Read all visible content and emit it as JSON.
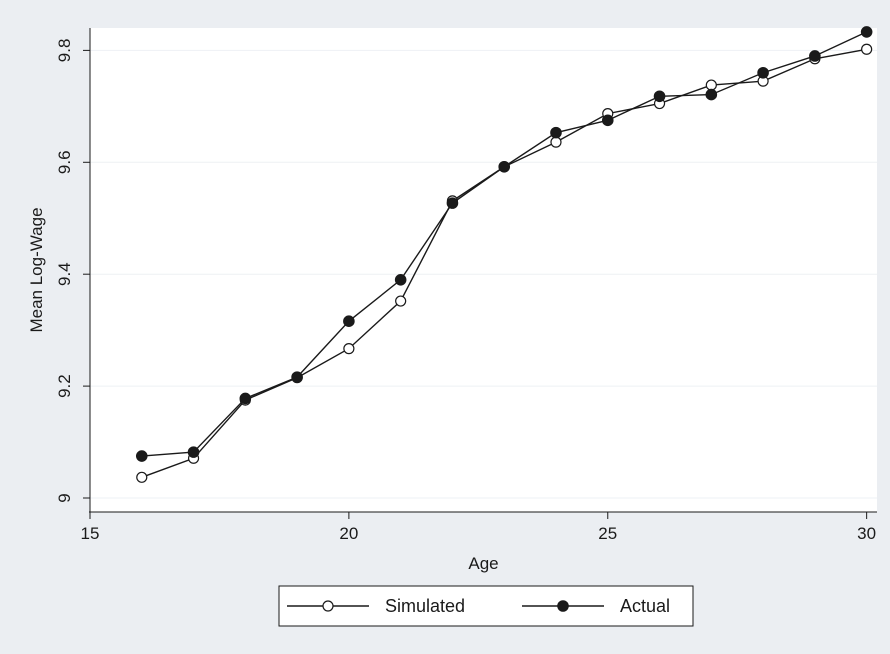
{
  "chart_data": {
    "type": "line",
    "title": "",
    "xlabel": "Age",
    "ylabel": "Mean Log-Wage",
    "xlim": [
      15,
      30.2
    ],
    "ylim": [
      8.975,
      9.84
    ],
    "xticks": [
      15,
      20,
      25,
      30
    ],
    "yticks": [
      9,
      9.2,
      9.4,
      9.6,
      9.8
    ],
    "xtick_labels": [
      "15",
      "20",
      "25",
      "30"
    ],
    "ytick_labels": [
      "9",
      "9.2",
      "9.4",
      "9.6",
      "9.8"
    ],
    "grid": "horizontal",
    "legend_position": "bottom",
    "x": [
      16,
      17,
      18,
      19,
      20,
      21,
      22,
      23,
      24,
      25,
      26,
      27,
      28,
      29,
      30
    ],
    "series": [
      {
        "name": "Simulated",
        "marker": "hollow-circle",
        "values": [
          9.037,
          9.071,
          9.175,
          9.215,
          9.267,
          9.352,
          9.531,
          9.592,
          9.636,
          9.687,
          9.705,
          9.738,
          9.745,
          9.785,
          9.802
        ]
      },
      {
        "name": "Actual",
        "marker": "filled-circle",
        "values": [
          9.075,
          9.082,
          9.178,
          9.216,
          9.316,
          9.39,
          9.527,
          9.592,
          9.653,
          9.675,
          9.718,
          9.721,
          9.76,
          9.79,
          9.833
        ]
      }
    ],
    "colors": {
      "outer_background": "#ebeef2",
      "plot_background": "#ffffff",
      "gridline": "#eef1f4",
      "line": "#1a1a1a"
    }
  }
}
